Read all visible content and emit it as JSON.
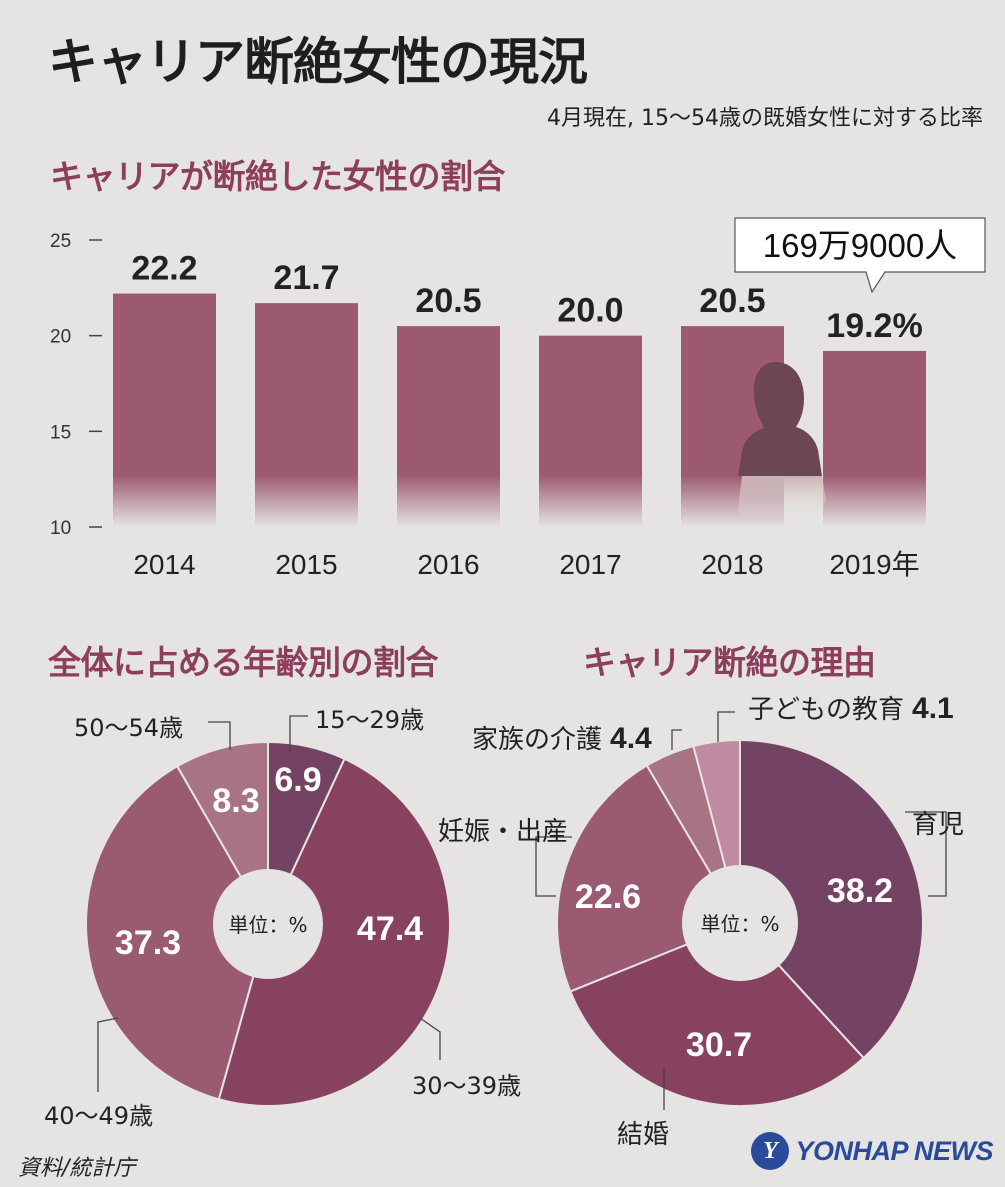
{
  "title": "キャリア断絶女性の現況",
  "subtitle": "4月現在, 15〜54歳の既婚女性に対する比率",
  "source": "資料/統計庁",
  "logo_text": "YONHAP NEWS",
  "logo_letter": "Y",
  "colors": {
    "background": "#e5e4e2",
    "bar": "#9c5a72",
    "title_accent": "#8c3e5c"
  },
  "chart_data": [
    {
      "type": "bar",
      "title": "キャリアが断絶した女性の割合",
      "categories": [
        "2014",
        "2015",
        "2016",
        "2017",
        "2018",
        "2019年"
      ],
      "values": [
        22.2,
        21.7,
        20.5,
        20.0,
        20.5,
        19.2
      ],
      "value_labels": [
        "22.2",
        "21.7",
        "20.5",
        "20.0",
        "20.5",
        "19.2%"
      ],
      "ylim": [
        10,
        25
      ],
      "yticks": [
        10,
        15,
        20,
        25
      ],
      "callout": "169万9000人",
      "xlabel": "",
      "ylabel": ""
    },
    {
      "type": "pie",
      "title": "全体に占める年齢別の割合",
      "center_label": "単位：%",
      "slices": [
        {
          "label": "15〜29歳",
          "value": 6.9,
          "value_label": "6.9",
          "color": "#744363"
        },
        {
          "label": "30〜39歳",
          "value": 47.4,
          "value_label": "47.4",
          "color": "#87425f"
        },
        {
          "label": "40〜49歳",
          "value": 37.3,
          "value_label": "37.3",
          "color": "#9a5a72"
        },
        {
          "label": "50〜54歳",
          "value": 8.3,
          "value_label": "8.3",
          "color": "#a87484"
        }
      ]
    },
    {
      "type": "pie",
      "title": "キャリア断絶の理由",
      "center_label": "単位：%",
      "slices": [
        {
          "label": "育児",
          "value": 38.2,
          "value_label": "38.2",
          "color": "#744363"
        },
        {
          "label": "結婚",
          "value": 30.7,
          "value_label": "30.7",
          "color": "#87425f"
        },
        {
          "label": "妊娠・出産",
          "value": 22.6,
          "value_label": "22.6",
          "color": "#9a5a72"
        },
        {
          "label": "家族の介護",
          "value": 4.4,
          "value_label": "4.4",
          "color": "#a87484"
        },
        {
          "label": "子どもの教育",
          "value": 4.1,
          "value_label": "4.1",
          "color": "#c08aa0"
        }
      ]
    }
  ]
}
